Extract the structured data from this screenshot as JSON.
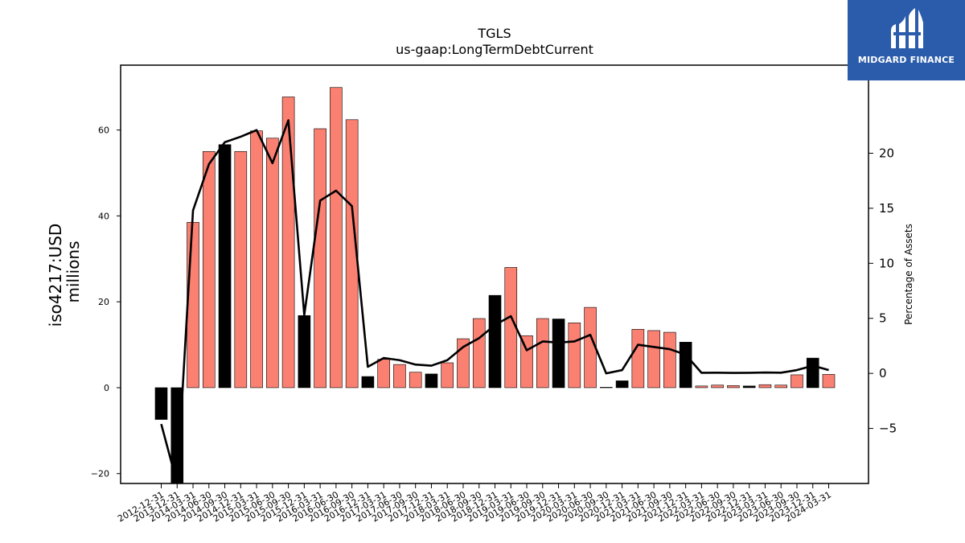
{
  "brand": {
    "name": "MIDGARD FINANCE",
    "bg_color": "#2b5cab",
    "icon": "midgard-logo-icon"
  },
  "chart_data": {
    "type": "bar",
    "title": "TGLS",
    "subtitle": "us-gaap:LongTermDebtCurrent",
    "ylabel": "iso4217:USD\nmillions",
    "y2label": "Percentage of Assets",
    "ylim": [
      -22.3,
      75.1
    ],
    "y2lim": [
      -10,
      28
    ],
    "yticks": [
      -20,
      0,
      20,
      40,
      60
    ],
    "y2ticks": [
      -5,
      0,
      5,
      10,
      15,
      20
    ],
    "colors": {
      "annual": "#000000",
      "quarterly": "#fa8072",
      "line": "#000000"
    },
    "categories": [
      "2012-12-31",
      "2013-12-31",
      "2014-03-31",
      "2014-06-30",
      "2014-09-30",
      "2014-12-31",
      "2015-03-31",
      "2015-06-30",
      "2015-09-30",
      "2015-12-31",
      "2016-03-31",
      "2016-06-30",
      "2016-09-30",
      "2016-12-31",
      "2017-03-31",
      "2017-06-30",
      "2017-09-30",
      "2017-12-31",
      "2018-03-31",
      "2018-06-30",
      "2018-09-30",
      "2018-12-31",
      "2019-03-31",
      "2019-06-30",
      "2019-09-30",
      "2019-12-31",
      "2020-03-31",
      "2020-06-30",
      "2020-09-30",
      "2020-12-31",
      "2021-03-31",
      "2021-06-30",
      "2021-09-30",
      "2021-12-31",
      "2022-03-31",
      "2022-06-30",
      "2022-09-30",
      "2022-12-31",
      "2023-03-31",
      "2023-06-30",
      "2023-09-30",
      "2023-12-31",
      "2024-03-31"
    ],
    "series": [
      {
        "values": [
          -7.4,
          -22.3,
          38.5,
          55.0,
          56.6,
          55.0,
          59.8,
          58.1,
          67.7,
          16.8,
          60.3,
          69.9,
          62.4,
          2.6,
          6.6,
          5.4,
          3.6,
          3.2,
          5.8,
          11.4,
          16.1,
          21.5,
          28.0,
          12.1,
          16.1,
          16.0,
          15.1,
          18.7,
          0.1,
          1.6,
          13.6,
          13.3,
          12.9,
          10.6,
          0.4,
          0.6,
          0.5,
          0.4,
          0.7,
          0.6,
          3.0,
          6.9,
          3.1
        ],
        "period": [
          "annual",
          "annual",
          "quarterly",
          "quarterly",
          "annual",
          "quarterly",
          "quarterly",
          "quarterly",
          "quarterly",
          "annual",
          "quarterly",
          "quarterly",
          "quarterly",
          "annual",
          "quarterly",
          "quarterly",
          "quarterly",
          "annual",
          "quarterly",
          "quarterly",
          "quarterly",
          "annual",
          "quarterly",
          "quarterly",
          "quarterly",
          "annual",
          "quarterly",
          "quarterly",
          "quarterly",
          "annual",
          "quarterly",
          "quarterly",
          "quarterly",
          "annual",
          "quarterly",
          "quarterly",
          "quarterly",
          "annual",
          "quarterly",
          "quarterly",
          "quarterly",
          "annual",
          "quarterly"
        ]
      },
      {
        "axis": "right",
        "values": [
          -4.6,
          -10.0,
          14.8,
          19.0,
          21.0,
          21.5,
          22.1,
          19.1,
          23.0,
          5.3,
          15.7,
          16.6,
          15.2,
          0.6,
          1.4,
          1.2,
          0.8,
          0.7,
          1.2,
          2.4,
          3.2,
          4.4,
          5.2,
          2.1,
          2.9,
          2.8,
          2.9,
          3.5,
          0.0,
          0.3,
          2.6,
          2.4,
          2.2,
          1.7,
          0.05,
          0.06,
          0.04,
          0.05,
          0.08,
          0.06,
          0.3,
          0.7,
          0.3
        ]
      }
    ]
  }
}
